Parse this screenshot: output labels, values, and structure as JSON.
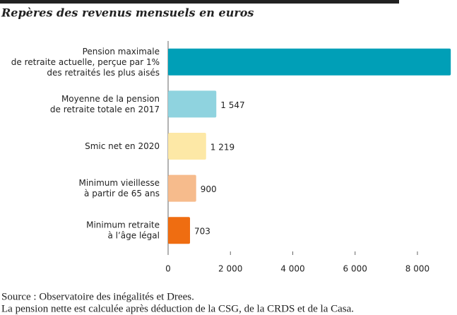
{
  "chart_data": {
    "type": "hbar",
    "title": "Repères des revenus mensuels en euros",
    "categories": [
      [
        "Pension maximale",
        "de retraite actuelle, perçue par 1%",
        "des retraités les plus aisés"
      ],
      [
        "Moyenne de la pension",
        "de retraite totale en 2017"
      ],
      [
        "Smic net en 2020"
      ],
      [
        "Minimum vieillesse",
        "à partir de 65 ans"
      ],
      [
        "Minimum retraite",
        "à l’âge légal"
      ]
    ],
    "values": [
      9070,
      1547,
      1219,
      900,
      703
    ],
    "value_labels": [
      null,
      "1 547",
      "1 219",
      "900",
      "703"
    ],
    "colors": [
      "#009fb7",
      "#8fd3df",
      "#fde8a6",
      "#f6bb8c",
      "#ef6d11"
    ],
    "xlim": [
      0,
      9270
    ],
    "xticks": [
      0,
      {
        "value": 2000,
        "label": "2 000"
      },
      {
        "value": 4000,
        "label": "4 000"
      },
      {
        "value": 6000,
        "label": "6 000"
      },
      {
        "value": 8000,
        "label": "8 000"
      }
    ],
    "source": "Source : Observatoire des inégalités et Drees.",
    "note": "La pension nette est calculée après déduction de la CSG, de la CRDS et de la Casa."
  }
}
